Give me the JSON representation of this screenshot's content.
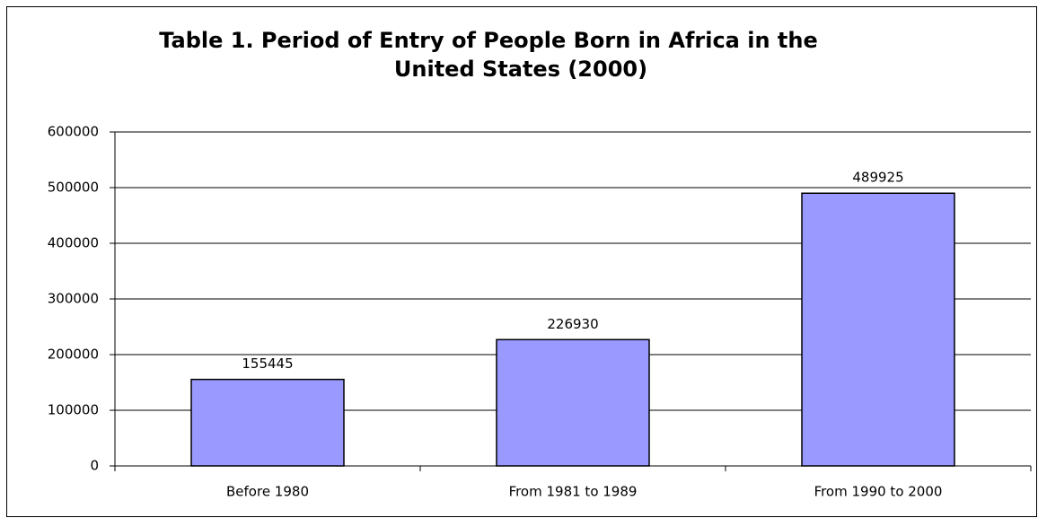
{
  "chart_data": {
    "type": "bar",
    "title": [
      "Table 1. Period of Entry of People Born in Africa in the",
      "United States (2000)"
    ],
    "categories": [
      "Before 1980",
      "From 1981 to 1989",
      "From 1990 to 2000"
    ],
    "values": [
      155445,
      226930,
      489925
    ],
    "color": "#9999ff",
    "ylim": [
      0,
      600000
    ],
    "yticks": [
      0,
      100000,
      200000,
      300000,
      400000,
      500000,
      600000
    ],
    "grid": true
  }
}
